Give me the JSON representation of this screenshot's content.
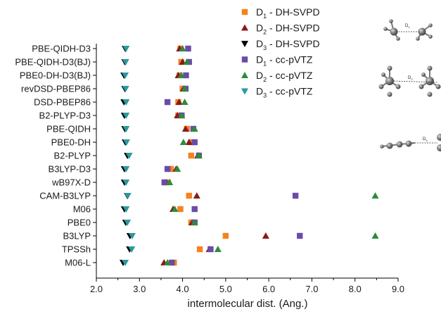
{
  "chart_data": {
    "type": "scatter",
    "xlabel": "intermolecular dist. (Ang.)",
    "xlim": [
      2.0,
      9.0
    ],
    "xticks": [
      "2.0",
      "3.0",
      "4.0",
      "5.0",
      "6.0",
      "7.0",
      "8.0",
      "9.0"
    ],
    "categories": [
      "PBE-QIDH-D3",
      "PBE-QIDH-D3(BJ)",
      "PBE0-DH-D3(BJ)",
      "revDSD-PBEP86",
      "DSD-PBEP86",
      "B2-PLYP-D3",
      "PBE-QIDH",
      "PBE0-DH",
      "B2-PLYP",
      "B3LYP-D3",
      "wB97X-D",
      "CAM-B3LYP",
      "M06",
      "PBE0",
      "B3LYP",
      "TPSSh",
      "M06-L"
    ],
    "legend_position": "top-right",
    "series": [
      {
        "name_main": "D",
        "name_sub": "1",
        "name_rest": " - DH-SVPD",
        "marker": "square",
        "color": "#f5821f",
        "values": [
          3.95,
          3.97,
          3.93,
          4.0,
          3.9,
          3.9,
          4.1,
          4.2,
          4.2,
          3.73,
          3.66,
          4.15,
          3.95,
          4.2,
          5.0,
          4.4,
          3.8
        ]
      },
      {
        "name_main": "D",
        "name_sub": "2",
        "name_rest": " - DH-SVPD",
        "marker": "triangle-up",
        "color": "#8b1a1a",
        "values": [
          3.93,
          4.0,
          3.9,
          4.02,
          3.92,
          3.88,
          4.07,
          4.15,
          4.35,
          3.85,
          3.63,
          4.33,
          3.78,
          4.22,
          5.93,
          4.62,
          3.57
        ]
      },
      {
        "name_main": "D",
        "name_sub": "3",
        "name_rest": " - DH-SVPD",
        "marker": "triangle-down",
        "color": "#000000",
        "values": [
          2.67,
          2.66,
          2.64,
          2.66,
          2.64,
          2.65,
          2.66,
          2.67,
          2.72,
          2.65,
          2.65,
          2.72,
          2.65,
          2.68,
          2.78,
          2.77,
          2.62
        ]
      },
      {
        "name_main": "D",
        "name_sub": "1",
        "name_rest": " - cc-pVTZ",
        "marker": "square",
        "color": "#6a4ba8",
        "values": [
          4.13,
          4.15,
          4.08,
          4.07,
          3.65,
          3.98,
          4.25,
          4.28,
          4.38,
          3.65,
          3.58,
          6.62,
          4.28,
          4.28,
          6.72,
          4.65,
          3.75
        ]
      },
      {
        "name_main": "D",
        "name_sub": "2",
        "name_rest": " - cc-pVTZ",
        "marker": "triangle-up",
        "color": "#2e8b3a",
        "values": [
          4.0,
          4.1,
          3.97,
          4.05,
          4.05,
          3.98,
          4.28,
          4.02,
          4.38,
          3.88,
          3.7,
          8.47,
          3.82,
          4.28,
          8.47,
          4.82,
          3.65
        ]
      },
      {
        "name_main": "D",
        "name_sub": "3",
        "name_rest": " - cc-pVTZ",
        "marker": "triangle-down",
        "color": "#2a9a9e",
        "values": [
          2.69,
          2.68,
          2.67,
          2.68,
          2.69,
          2.69,
          2.69,
          2.7,
          2.76,
          2.69,
          2.69,
          2.73,
          2.69,
          2.72,
          2.83,
          2.82,
          2.67
        ]
      }
    ],
    "insets": [
      {
        "label_main": "D",
        "label_sub": "1"
      },
      {
        "label_main": "D",
        "label_sub": "2"
      },
      {
        "label_main": "D",
        "label_sub": "3"
      }
    ]
  }
}
